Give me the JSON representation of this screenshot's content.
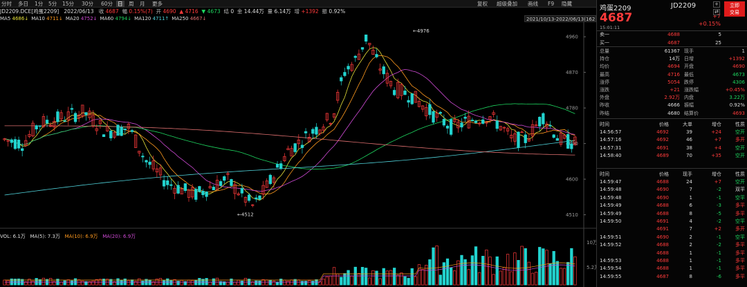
{
  "toolbar": {
    "left": [
      "分时",
      "多日",
      "1分",
      "5分",
      "15分",
      "30分",
      "60分",
      "日",
      "周",
      "月",
      "更多"
    ],
    "selected": "日",
    "right": [
      "复权",
      "超级叠加",
      "画线",
      "F9",
      "隐藏"
    ]
  },
  "info": {
    "symbol": "JD2209.DCE[鸡蛋2209]",
    "date": "2022/06/13",
    "close_label": "收",
    "close": "4687",
    "range_label": "幅",
    "range": "0.15%(7)",
    "open_label": "开",
    "open": "4690",
    "high": "4716",
    "low": "4673",
    "settle_label": "结",
    "settle": "0",
    "amount_label": "金",
    "amount": "14.44万",
    "volume_label": "量",
    "volume": "6.14万",
    "oi_label": "增",
    "oi": "+1392",
    "amp_label": "振",
    "amp": "0.92%"
  },
  "ma": [
    {
      "name": "MA5",
      "value": "4686",
      "arrow": "↓",
      "color": "#e8e23a"
    },
    {
      "name": "MA10",
      "value": "4711",
      "arrow": "↓",
      "color": "#ff9a1f"
    },
    {
      "name": "MA20",
      "value": "4752",
      "arrow": "↓",
      "color": "#d04bd6"
    },
    {
      "name": "MA60",
      "value": "4794",
      "arrow": "↓",
      "color": "#1ed760"
    },
    {
      "name": "MA120",
      "value": "4711",
      "arrow": "↑",
      "color": "#4fd1d9"
    },
    {
      "name": "MA250",
      "value": "4667",
      "arrow": "↓",
      "color": "#e07070"
    }
  ],
  "date_range": "2021/10/13-2022/06/13(162日)",
  "chart_data": {
    "type": "candlestick",
    "price_axis": {
      "ticks": [
        4510,
        4600,
        4690,
        4780,
        4870,
        4960
      ],
      "range": [
        4490,
        4990
      ]
    },
    "volume_axis": {
      "ticks": [
        "10万",
        "5.2万"
      ]
    },
    "annotations": {
      "high": "4976",
      "low": "4512"
    },
    "volume_header": {
      "vol": "VOL: 6.1万",
      "ma5": "MA(5): 7.3万",
      "ma10": "MA(10): 6.9万",
      "ma20": "MA(20): 6.9万"
    }
  },
  "quote": {
    "name": "鸡蛋2209",
    "code": "JD2209",
    "price": "4687",
    "change": "+7",
    "change_pct": "+0.15%",
    "time": "15:01:11",
    "trade_button": [
      "立即",
      "交易"
    ],
    "ask": {
      "label": "卖一",
      "price": "4688",
      "vol": "5"
    },
    "bid": {
      "label": "买一",
      "price": "4687",
      "vol": "25"
    },
    "stats": [
      [
        "总量",
        "61367",
        "现手",
        "1"
      ],
      [
        "持仓",
        "14万",
        "日增",
        "+1392"
      ],
      [
        "均价",
        "4694",
        "开盘",
        "4690"
      ],
      [
        "最高",
        "4716",
        "最低",
        "4673"
      ],
      [
        "涨停",
        "5054",
        "跌停",
        "4306"
      ],
      [
        "涨跌",
        "+21",
        "涨跌幅",
        "+0.45%"
      ],
      [
        "外盘",
        "2.92万",
        "内盘",
        "3.22万"
      ],
      [
        "昨收",
        "4666",
        "振幅",
        "0.92%"
      ],
      [
        "昨结",
        "4680",
        "结算价",
        "4693"
      ]
    ],
    "big_headers": [
      "时间",
      "价格",
      "大单",
      "增仓",
      "性质"
    ],
    "big_orders": [
      [
        "14:56:57",
        "4692",
        "39",
        "+24",
        "空开"
      ],
      [
        "14:57:16",
        "4692",
        "46",
        "+7",
        "多开"
      ],
      [
        "14:57:31",
        "4691",
        "38",
        "+4",
        "空开"
      ],
      [
        "14:58:40",
        "4689",
        "70",
        "+35",
        "空开"
      ]
    ],
    "tick_headers": [
      "时间",
      "价格",
      "现手",
      "增仓",
      "性质"
    ],
    "ticks": [
      [
        "14:59:47",
        "4688",
        "24",
        "+7",
        "空开"
      ],
      [
        "14:59:48",
        "4690",
        "7",
        "-2",
        "双平"
      ],
      [
        "14:59:48",
        "4690",
        "1",
        "-1",
        "空平"
      ],
      [
        "14:59:49",
        "4688",
        "6",
        "-3",
        "多平"
      ],
      [
        "14:59:49",
        "4688",
        "8",
        "-5",
        "多平"
      ],
      [
        "14:59:50",
        "4691",
        "4",
        "-2",
        "空平"
      ],
      [
        "",
        "4691",
        "7",
        "+2",
        "多开"
      ],
      [
        "14:59:51",
        "4690",
        "2",
        "-1",
        "空平"
      ],
      [
        "14:59:52",
        "4688",
        "2",
        "-2",
        "多平"
      ],
      [
        "",
        "4688",
        "1",
        "-1",
        "多平"
      ],
      [
        "14:59:53",
        "4688",
        "1",
        "-1",
        "多平"
      ],
      [
        "14:59:54",
        "4688",
        "1",
        "-1",
        "多平"
      ],
      [
        "14:59:55",
        "4687",
        "8",
        "-6",
        "多平"
      ]
    ]
  }
}
